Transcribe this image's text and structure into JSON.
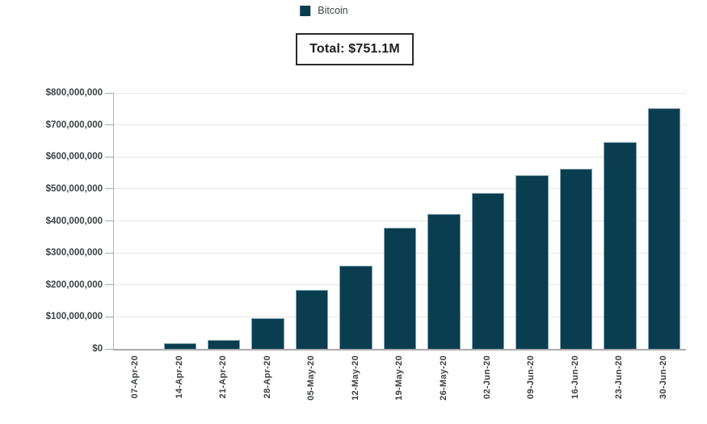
{
  "total_box": {
    "label": "Total: $751.1M"
  },
  "chart_data": {
    "type": "bar",
    "title": "",
    "xlabel": "",
    "ylabel": "",
    "categories": [
      "07-Apr-20",
      "14-Apr-20",
      "21-Apr-20",
      "28-Apr-20",
      "05-May-20",
      "12-May-20",
      "19-May-20",
      "26-May-20",
      "02-Jun-20",
      "09-Jun-20",
      "16-Jun-20",
      "23-Jun-20",
      "30-Jun-20"
    ],
    "series": [
      {
        "name": "Bitcoin",
        "values": [
          0,
          17000000,
          28000000,
          95000000,
          185000000,
          260000000,
          378000000,
          422000000,
          488000000,
          543000000,
          562000000,
          647000000,
          751100000
        ]
      }
    ],
    "ylim": [
      0,
      800000000
    ],
    "ytick_labels_top_to_bottom": [
      "$800,000,000",
      "$700,000,000",
      "$600,000,000",
      "$500,000,000",
      "$400,000,000",
      "$300,000,000",
      "$200,000,000",
      "$100,000,000",
      "$0"
    ],
    "grid": "horizontal",
    "legend_position": "top",
    "annotation_total": "Total: $751.1M",
    "colors": {
      "bar_fill": "#0a3d4f",
      "bar_stroke": "#7fa2ae",
      "gridline": "#e7e7e7",
      "axis": "#ababab",
      "tick_text": "#3d4144"
    }
  }
}
